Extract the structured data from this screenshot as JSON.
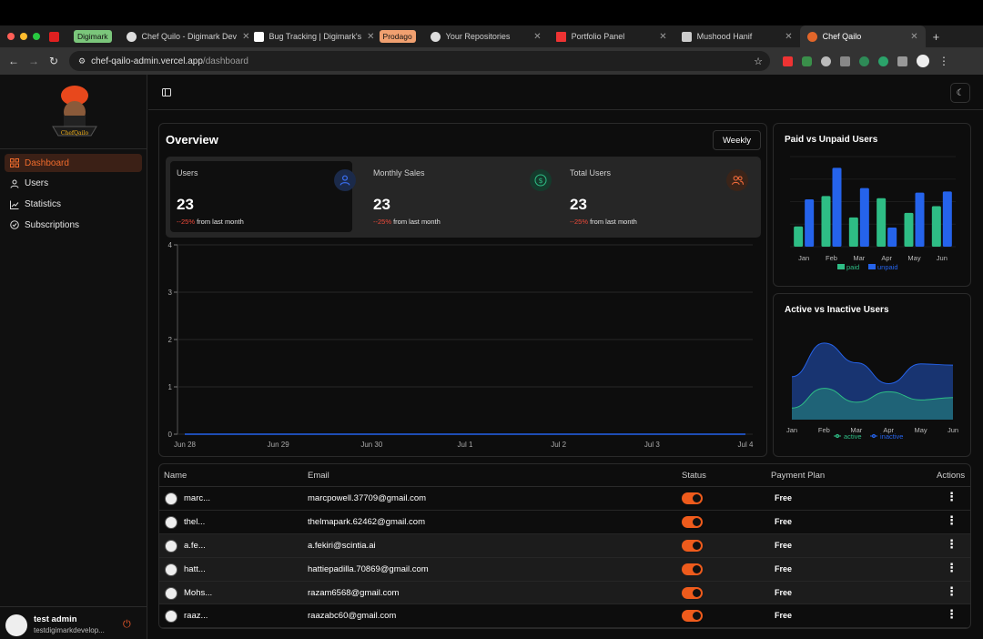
{
  "browser": {
    "tabs": [
      {
        "label": "Digimark",
        "kind": "badge",
        "color": "#7bc67b"
      },
      {
        "label": "Chef Quilo - Digimark Dev",
        "kind": "tab"
      },
      {
        "label": "Bug Tracking | Digimark's",
        "kind": "tab"
      },
      {
        "label": "Prodago",
        "kind": "badge",
        "color": "#f0a070"
      },
      {
        "label": "Your Repositories",
        "kind": "tab"
      },
      {
        "label": "Portfolio Panel",
        "kind": "tab"
      },
      {
        "label": "Mushood Hanif",
        "kind": "tab"
      },
      {
        "label": "Chef Qailo",
        "kind": "tab",
        "active": true
      }
    ],
    "url_domain": "chef-qailo-admin.vercel.app",
    "url_path": "/dashboard"
  },
  "sidebar": {
    "items": [
      {
        "label": "Dashboard",
        "icon": "dashboard-icon",
        "active": true
      },
      {
        "label": "Users",
        "icon": "user-icon"
      },
      {
        "label": "Statistics",
        "icon": "chart-icon"
      },
      {
        "label": "Subscriptions",
        "icon": "subscription-icon"
      }
    ],
    "user": {
      "name": "test admin",
      "email": "testdigimarkdevelop..."
    }
  },
  "overview": {
    "title": "Overview",
    "period": "Weekly",
    "stats": [
      {
        "label": "Users",
        "value": "23",
        "change": "--25%",
        "suffix": " from last month",
        "icon": "user-icon",
        "color": "#3a6ff2"
      },
      {
        "label": "Monthly Sales",
        "value": "23",
        "change": "--25%",
        "suffix": " from last month",
        "icon": "dollar-icon",
        "color": "#2ebd85"
      },
      {
        "label": "Total Users",
        "value": "23",
        "change": "--25%",
        "suffix": " from last month",
        "icon": "users-icon",
        "color": "#ef6a3a"
      }
    ]
  },
  "chart_data": [
    {
      "type": "line",
      "title": "",
      "x": [
        "Jun 28",
        "Jun 29",
        "Jun 30",
        "Jul 1",
        "Jul 2",
        "Jul 3",
        "Jul 4"
      ],
      "series": [
        {
          "name": "users",
          "values": [
            0,
            0,
            0,
            0,
            0,
            0,
            0
          ]
        }
      ],
      "yticks": [
        "0",
        "1",
        "2",
        "3",
        "4"
      ],
      "ylim": [
        0,
        4
      ]
    },
    {
      "type": "bar",
      "title": "Paid vs Unpaid Users",
      "categories": [
        "Jan",
        "Feb",
        "Mar",
        "Apr",
        "May",
        "Jun"
      ],
      "series": [
        {
          "name": "paid",
          "values": [
            18,
            45,
            26,
            43,
            30,
            36
          ],
          "color": "#2ebd85"
        },
        {
          "name": "unpaid",
          "values": [
            42,
            70,
            52,
            17,
            48,
            49
          ],
          "color": "#2563eb"
        }
      ],
      "ylim": [
        0,
        80
      ]
    },
    {
      "type": "area",
      "title": "Active vs Inactive Users",
      "categories": [
        "Jan",
        "Feb",
        "Mar",
        "Apr",
        "May",
        "Jun"
      ],
      "series": [
        {
          "name": "inactive",
          "values": [
            37,
            66,
            49,
            31,
            48,
            47
          ],
          "color": "#2563eb"
        },
        {
          "name": "active",
          "values": [
            10,
            27,
            15,
            24,
            17,
            19
          ],
          "color": "#2ebd85"
        }
      ],
      "ylim": [
        0,
        80
      ]
    }
  ],
  "table": {
    "headers": [
      "Name",
      "Email",
      "Status",
      "Payment Plan",
      "Actions"
    ],
    "rows": [
      {
        "name": "marc...",
        "email": "marcpowell.37709@gmail.com",
        "plan": "Free"
      },
      {
        "name": "thel...",
        "email": "thelmapark.62462@gmail.com",
        "plan": "Free"
      },
      {
        "name": "a.fe...",
        "email": "a.fekiri@scintia.ai",
        "plan": "Free"
      },
      {
        "name": "hatt...",
        "email": "hattiepadilla.70869@gmail.com",
        "plan": "Free"
      },
      {
        "name": "Mohs...",
        "email": "razam6568@gmail.com",
        "plan": "Free"
      },
      {
        "name": "raaz...",
        "email": "raazabc60@gmail.com",
        "plan": "Free"
      }
    ]
  }
}
